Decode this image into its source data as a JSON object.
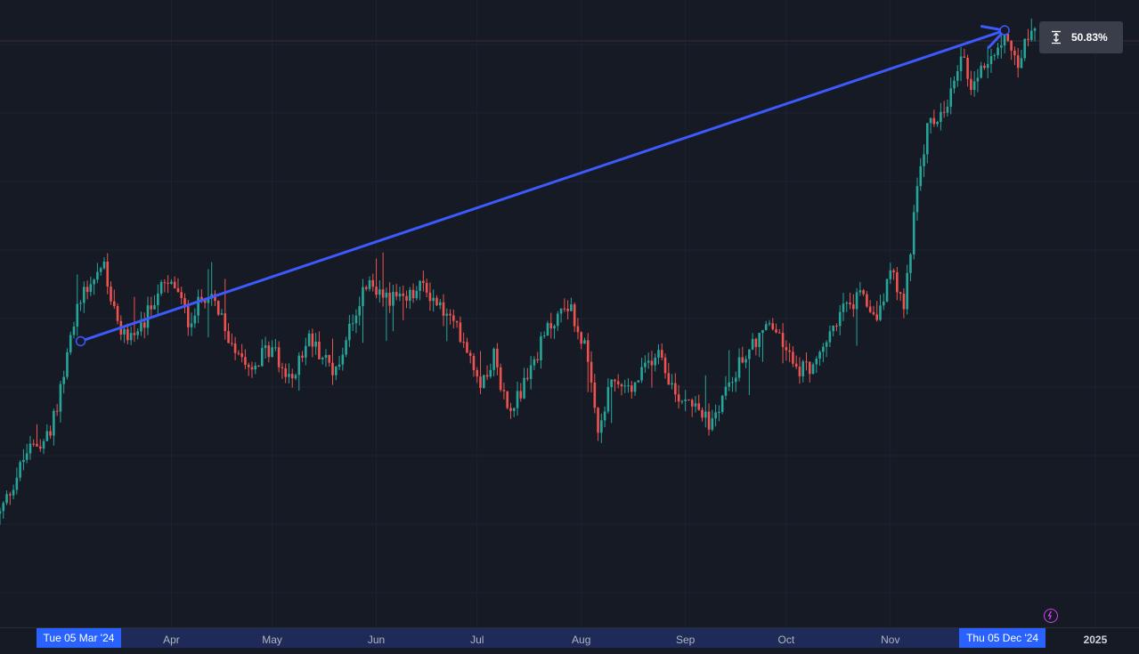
{
  "chart_data": {
    "type": "candlestick",
    "title": "",
    "xlabel": "",
    "ylabel": "",
    "grid": true,
    "x_axis": {
      "range": [
        "2024-02-10",
        "2025-01-14"
      ],
      "tick_labels": [
        {
          "text": "Apr",
          "date": "2024-04-01"
        },
        {
          "text": "May",
          "date": "2024-05-01"
        },
        {
          "text": "Jun",
          "date": "2024-06-01"
        },
        {
          "text": "Jul",
          "date": "2024-07-01"
        },
        {
          "text": "Aug",
          "date": "2024-08-01"
        },
        {
          "text": "Sep",
          "date": "2024-09-01"
        },
        {
          "text": "Oct",
          "date": "2024-10-01"
        },
        {
          "text": "Nov",
          "date": "2024-11-01"
        },
        {
          "text": "2025",
          "date": "2025-01-01",
          "bold": true
        }
      ]
    },
    "price_path": [
      [
        "2024-02-10",
        100
      ],
      [
        "2024-02-18",
        114
      ],
      [
        "2024-02-25",
        118
      ],
      [
        "2024-03-01",
        136
      ],
      [
        "2024-03-05",
        150
      ],
      [
        "2024-03-12",
        157
      ],
      [
        "2024-03-16",
        142
      ],
      [
        "2024-03-22",
        140
      ],
      [
        "2024-03-28",
        151
      ],
      [
        "2024-04-02",
        152
      ],
      [
        "2024-04-06",
        144
      ],
      [
        "2024-04-12",
        151
      ],
      [
        "2024-04-18",
        140
      ],
      [
        "2024-04-25",
        134
      ],
      [
        "2024-05-01",
        138
      ],
      [
        "2024-05-06",
        130
      ],
      [
        "2024-05-12",
        140
      ],
      [
        "2024-05-20",
        132
      ],
      [
        "2024-05-24",
        143
      ],
      [
        "2024-05-29",
        152
      ],
      [
        "2024-06-03",
        150
      ],
      [
        "2024-06-09",
        148
      ],
      [
        "2024-06-15",
        152
      ],
      [
        "2024-06-21",
        146
      ],
      [
        "2024-06-27",
        140
      ],
      [
        "2024-07-02",
        130
      ],
      [
        "2024-07-06",
        136
      ],
      [
        "2024-07-10",
        124
      ],
      [
        "2024-07-14",
        128
      ],
      [
        "2024-07-22",
        142
      ],
      [
        "2024-07-28",
        148
      ],
      [
        "2024-08-02",
        138
      ],
      [
        "2024-08-06",
        118
      ],
      [
        "2024-08-10",
        130
      ],
      [
        "2024-08-16",
        128
      ],
      [
        "2024-08-24",
        138
      ],
      [
        "2024-08-29",
        127
      ],
      [
        "2024-09-04",
        126
      ],
      [
        "2024-09-08",
        120
      ],
      [
        "2024-09-14",
        130
      ],
      [
        "2024-09-20",
        138
      ],
      [
        "2024-09-26",
        143
      ],
      [
        "2024-09-30",
        139
      ],
      [
        "2024-10-04",
        133
      ],
      [
        "2024-10-10",
        134
      ],
      [
        "2024-10-17",
        146
      ],
      [
        "2024-10-23",
        149
      ],
      [
        "2024-10-28",
        145
      ],
      [
        "2024-11-01",
        155
      ],
      [
        "2024-11-05",
        147
      ],
      [
        "2024-11-08",
        168
      ],
      [
        "2024-11-12",
        188
      ],
      [
        "2024-11-18",
        192
      ],
      [
        "2024-11-22",
        205
      ],
      [
        "2024-11-25",
        198
      ],
      [
        "2024-11-29",
        202
      ],
      [
        "2024-12-05",
        210
      ],
      [
        "2024-12-09",
        203
      ],
      [
        "2024-12-14",
        212
      ]
    ],
    "y_range": [
      95,
      215
    ],
    "measure_arrow": {
      "from_date": "2024-03-05",
      "from_price": 139.3,
      "to_date": "2024-12-05",
      "to_price": 210.1,
      "color": "#3d5afe"
    },
    "up_color": "#26a69a",
    "down_color": "#ef5350"
  },
  "measure": {
    "percent": "50.83%"
  },
  "crosshair": {
    "start_label": "Tue 05 Mar '24",
    "end_label": "Thu 05 Dec '24"
  },
  "icons": {
    "measure": "vertical-range-icon",
    "replay": "lightning-icon"
  }
}
